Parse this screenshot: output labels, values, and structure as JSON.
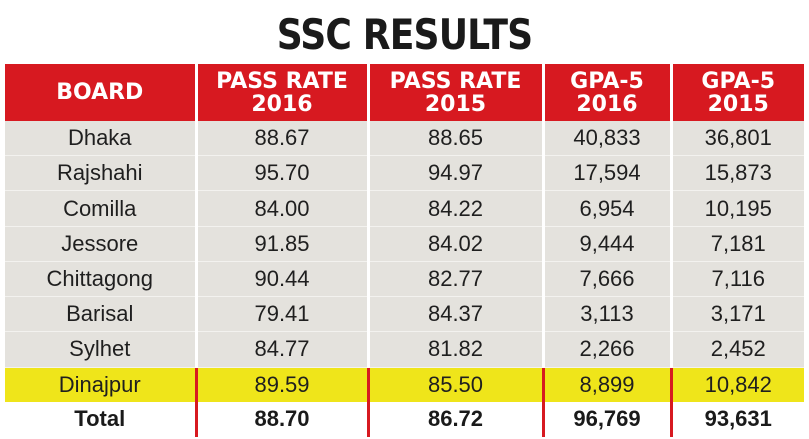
{
  "title": "SSC RESULTS",
  "chart_data": {
    "type": "table",
    "title": "SSC RESULTS",
    "columns": [
      {
        "line1": "BOARD",
        "line2": ""
      },
      {
        "line1": "PASS RATE",
        "line2": "2016"
      },
      {
        "line1": "PASS RATE",
        "line2": "2015"
      },
      {
        "line1": "GPA-5",
        "line2": "2016"
      },
      {
        "line1": "GPA-5",
        "line2": "2015"
      }
    ],
    "rows": [
      [
        "Dhaka",
        "88.67",
        "88.65",
        "40,833",
        "36,801"
      ],
      [
        "Rajshahi",
        "95.70",
        "94.97",
        "17,594",
        "15,873"
      ],
      [
        "Comilla",
        "84.00",
        "84.22",
        "6,954",
        "10,195"
      ],
      [
        "Jessore",
        "91.85",
        "84.02",
        "9,444",
        "7,181"
      ],
      [
        "Chittagong",
        "90.44",
        "82.77",
        "7,666",
        "7,116"
      ],
      [
        "Barisal",
        "79.41",
        "84.37",
        "3,113",
        "3,171"
      ],
      [
        "Sylhet",
        "84.77",
        "81.82",
        "2,266",
        "2,452"
      ],
      [
        "Dinajpur",
        "89.59",
        "85.50",
        "8,899",
        "10,842"
      ]
    ],
    "total": [
      "Total",
      "88.70",
      "86.72",
      "96,769",
      "93,631"
    ],
    "highlight_row": "Dinajpur"
  },
  "colors": {
    "header_bg": "#d71920",
    "header_text": "#ffffff",
    "row_bg": "#e4e2dd",
    "highlight_bg": "#efe51a",
    "divider": "#d71920"
  }
}
